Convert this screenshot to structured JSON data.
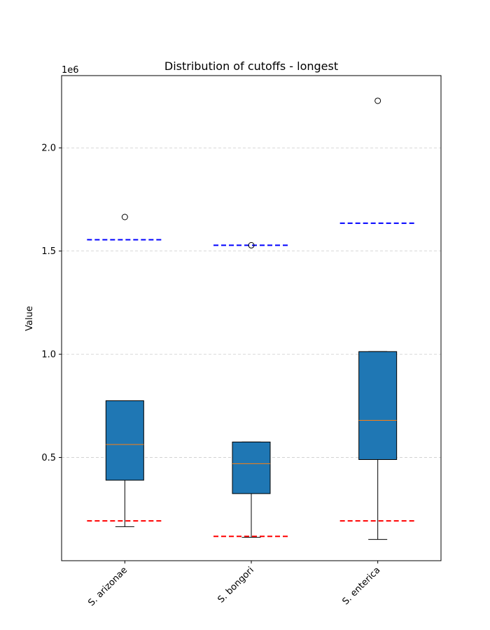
{
  "chart_data": {
    "type": "box",
    "title": "Distribution of cutoffs - longest",
    "ylabel": "Value",
    "xlabel": "",
    "y_scale_label": "1e6",
    "ylim": [
      0,
      2350000
    ],
    "yticks": [
      {
        "value": 500000,
        "label": "0.5"
      },
      {
        "value": 1000000,
        "label": "1.0"
      },
      {
        "value": 1500000,
        "label": "1.5"
      },
      {
        "value": 2000000,
        "label": "2.0"
      }
    ],
    "grid": "y-dashed",
    "colors": {
      "box_fill": "#1f77b4",
      "median": "#ff7f0e",
      "upper_cutoff": "#0000ff",
      "lower_cutoff": "#ff0000",
      "grid": "#cccccc"
    },
    "categories": [
      "S. arizonae",
      "S. bongori",
      "S. enterica"
    ],
    "boxes": [
      {
        "name": "S. arizonae",
        "whisker_low": 165000,
        "q1": 390000,
        "median": 563000,
        "q3": 775000,
        "whisker_high": 775000,
        "outliers": [
          1665000
        ],
        "upper_cutoff": 1555000,
        "lower_cutoff": 193000
      },
      {
        "name": "S. bongori",
        "whisker_low": 113000,
        "q1": 325000,
        "median": 470000,
        "q3": 575000,
        "whisker_high": 575000,
        "outliers": [
          1528000
        ],
        "upper_cutoff": 1528000,
        "lower_cutoff": 118000
      },
      {
        "name": "S. enterica",
        "whisker_low": 103000,
        "q1": 490000,
        "median": 680000,
        "q3": 1013000,
        "whisker_high": 1013000,
        "outliers": [
          2228000
        ],
        "upper_cutoff": 1635000,
        "lower_cutoff": 193000
      }
    ]
  }
}
